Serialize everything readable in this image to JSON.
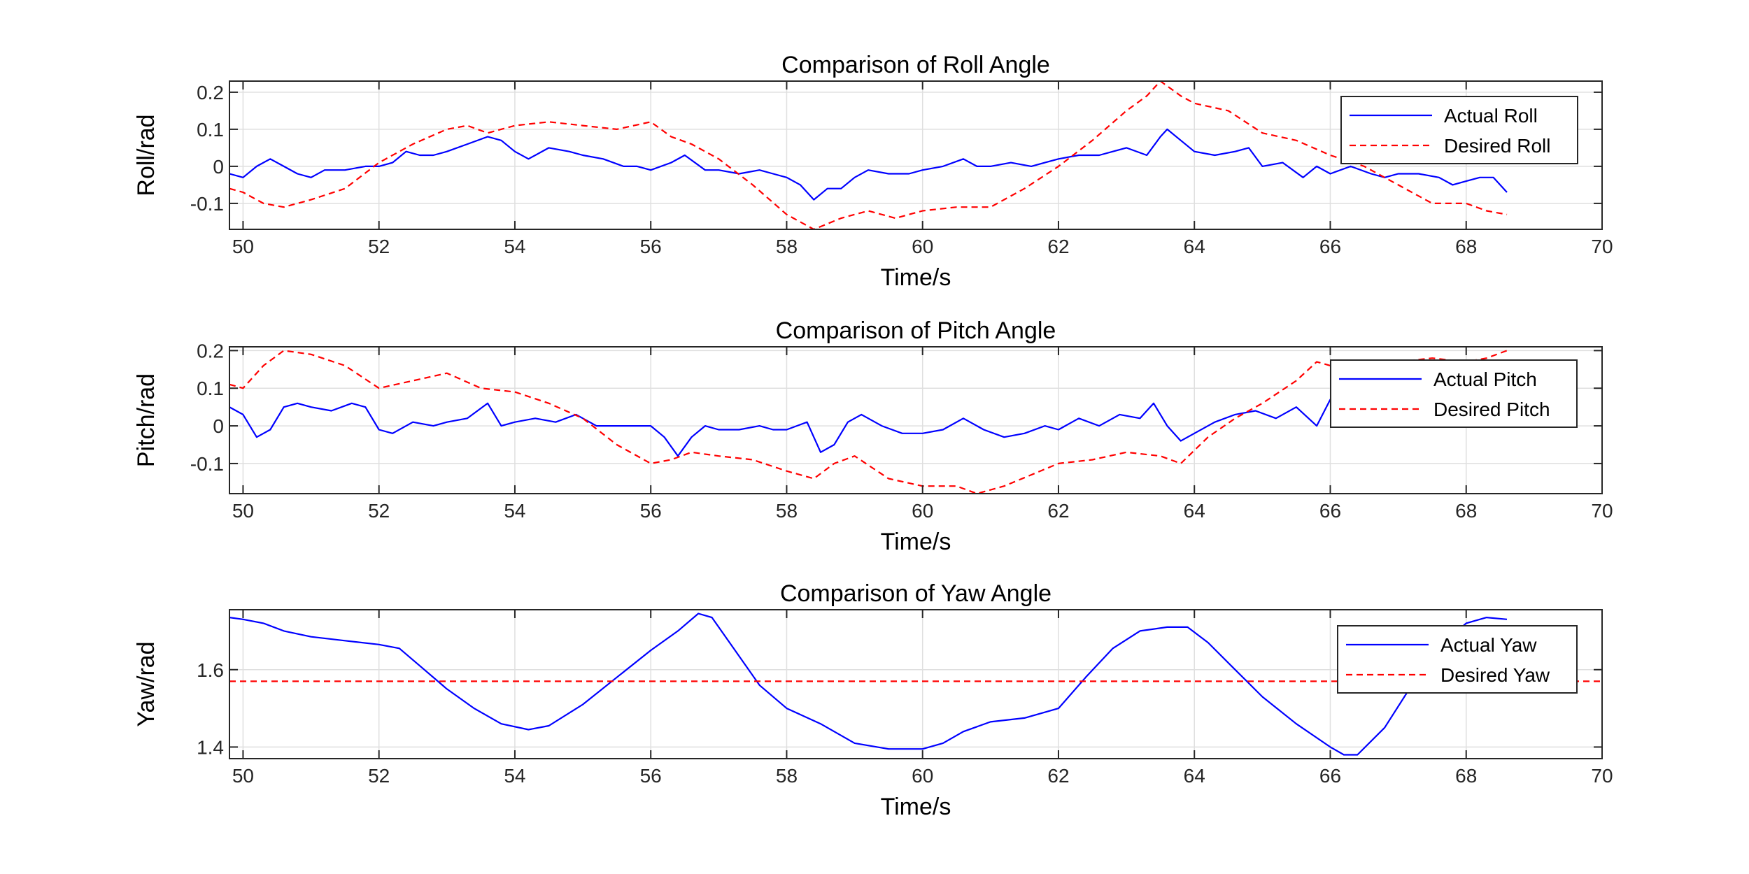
{
  "chart_data": [
    {
      "type": "line",
      "title": "Comparison of Roll Angle",
      "xlabel": "Time/s",
      "ylabel": "Roll/rad",
      "xlim": [
        49.8,
        70
      ],
      "ylim": [
        -0.17,
        0.23
      ],
      "xticks": [
        50,
        52,
        54,
        56,
        58,
        60,
        62,
        64,
        66,
        68,
        70
      ],
      "yticks": [
        -0.1,
        0,
        0.1,
        0.2
      ],
      "ytick_labels": [
        "-0.1",
        "0",
        "0.1",
        "0.2"
      ],
      "grid": true,
      "legend_position": "top-right",
      "series": [
        {
          "name": "Actual Roll",
          "color": "#0000ff",
          "style": "solid",
          "x": [
            49.8,
            50.0,
            50.2,
            50.4,
            50.6,
            50.8,
            51.0,
            51.2,
            51.5,
            51.8,
            52.0,
            52.2,
            52.4,
            52.6,
            52.8,
            53.0,
            53.3,
            53.6,
            53.8,
            54.0,
            54.2,
            54.5,
            54.8,
            55.0,
            55.3,
            55.6,
            55.8,
            56.0,
            56.3,
            56.5,
            56.8,
            57.0,
            57.3,
            57.6,
            57.8,
            58.0,
            58.2,
            58.4,
            58.6,
            58.8,
            59.0,
            59.2,
            59.5,
            59.8,
            60.0,
            60.3,
            60.6,
            60.8,
            61.0,
            61.3,
            61.6,
            61.8,
            62.0,
            62.3,
            62.6,
            62.8,
            63.0,
            63.3,
            63.5,
            63.6,
            63.8,
            64.0,
            64.3,
            64.6,
            64.8,
            65.0,
            65.3,
            65.6,
            65.8,
            66.0,
            66.3,
            66.6,
            66.8,
            67.0,
            67.3,
            67.6,
            67.8,
            68.0,
            68.2,
            68.4,
            68.6
          ],
          "y": [
            -0.02,
            -0.03,
            0.0,
            0.02,
            0.0,
            -0.02,
            -0.03,
            -0.01,
            -0.01,
            0.0,
            0.0,
            0.01,
            0.04,
            0.03,
            0.03,
            0.04,
            0.06,
            0.08,
            0.07,
            0.04,
            0.02,
            0.05,
            0.04,
            0.03,
            0.02,
            0.0,
            0.0,
            -0.01,
            0.01,
            0.03,
            -0.01,
            -0.01,
            -0.02,
            -0.01,
            -0.02,
            -0.03,
            -0.05,
            -0.09,
            -0.06,
            -0.06,
            -0.03,
            -0.01,
            -0.02,
            -0.02,
            -0.01,
            0.0,
            0.02,
            0.0,
            0.0,
            0.01,
            0.0,
            0.01,
            0.02,
            0.03,
            0.03,
            0.04,
            0.05,
            0.03,
            0.08,
            0.1,
            0.07,
            0.04,
            0.03,
            0.04,
            0.05,
            0.0,
            0.01,
            -0.03,
            0.0,
            -0.02,
            0.0,
            -0.02,
            -0.03,
            -0.02,
            -0.02,
            -0.03,
            -0.05,
            -0.04,
            -0.03,
            -0.03,
            -0.07
          ]
        },
        {
          "name": "Desired Roll",
          "color": "#ff0000",
          "style": "dashed",
          "x": [
            49.8,
            50.0,
            50.3,
            50.6,
            51.0,
            51.5,
            52.0,
            52.5,
            53.0,
            53.3,
            53.6,
            54.0,
            54.5,
            55.0,
            55.5,
            56.0,
            56.3,
            56.6,
            57.0,
            57.5,
            58.0,
            58.4,
            58.8,
            59.2,
            59.6,
            60.0,
            60.5,
            61.0,
            61.5,
            62.0,
            62.5,
            63.0,
            63.3,
            63.5,
            63.8,
            64.0,
            64.5,
            65.0,
            65.5,
            66.0,
            66.5,
            67.0,
            67.5,
            68.0,
            68.3,
            68.6
          ],
          "y": [
            -0.06,
            -0.07,
            -0.1,
            -0.11,
            -0.09,
            -0.06,
            0.01,
            0.06,
            0.1,
            0.11,
            0.09,
            0.11,
            0.12,
            0.11,
            0.1,
            0.12,
            0.08,
            0.06,
            0.02,
            -0.05,
            -0.13,
            -0.17,
            -0.14,
            -0.12,
            -0.14,
            -0.12,
            -0.11,
            -0.11,
            -0.06,
            0.0,
            0.07,
            0.15,
            0.19,
            0.23,
            0.19,
            0.17,
            0.15,
            0.09,
            0.07,
            0.03,
            0.0,
            -0.05,
            -0.1,
            -0.1,
            -0.12,
            -0.13
          ]
        }
      ]
    },
    {
      "type": "line",
      "title": "Comparison of Pitch Angle",
      "xlabel": "Time/s",
      "ylabel": "Pitch/rad",
      "xlim": [
        49.8,
        70
      ],
      "ylim": [
        -0.18,
        0.21
      ],
      "xticks": [
        50,
        52,
        54,
        56,
        58,
        60,
        62,
        64,
        66,
        68,
        70
      ],
      "yticks": [
        -0.1,
        0,
        0.1,
        0.2
      ],
      "ytick_labels": [
        "-0.1",
        "0",
        "0.1",
        "0.2"
      ],
      "grid": true,
      "legend_position": "top-right",
      "series": [
        {
          "name": "Actual Pitch",
          "color": "#0000ff",
          "style": "solid",
          "x": [
            49.8,
            50.0,
            50.2,
            50.4,
            50.6,
            50.8,
            51.0,
            51.3,
            51.6,
            51.8,
            52.0,
            52.2,
            52.5,
            52.8,
            53.0,
            53.3,
            53.6,
            53.8,
            54.0,
            54.3,
            54.6,
            54.9,
            55.2,
            55.5,
            55.8,
            56.0,
            56.2,
            56.4,
            56.6,
            56.8,
            57.0,
            57.3,
            57.6,
            57.8,
            58.0,
            58.3,
            58.5,
            58.7,
            58.9,
            59.1,
            59.4,
            59.7,
            60.0,
            60.3,
            60.6,
            60.9,
            61.2,
            61.5,
            61.8,
            62.0,
            62.3,
            62.6,
            62.9,
            63.2,
            63.4,
            63.6,
            63.8,
            64.0,
            64.3,
            64.6,
            64.9,
            65.2,
            65.5,
            65.8,
            66.0,
            66.2
          ],
          "y": [
            0.05,
            0.03,
            -0.03,
            -0.01,
            0.05,
            0.06,
            0.05,
            0.04,
            0.06,
            0.05,
            -0.01,
            -0.02,
            0.01,
            0.0,
            0.01,
            0.02,
            0.06,
            0.0,
            0.01,
            0.02,
            0.01,
            0.03,
            0.0,
            0.0,
            0.0,
            0.0,
            -0.03,
            -0.08,
            -0.03,
            0.0,
            -0.01,
            -0.01,
            0.0,
            -0.01,
            -0.01,
            0.01,
            -0.07,
            -0.05,
            0.01,
            0.03,
            0.0,
            -0.02,
            -0.02,
            -0.01,
            0.02,
            -0.01,
            -0.03,
            -0.02,
            0.0,
            -0.01,
            0.02,
            0.0,
            0.03,
            0.02,
            0.06,
            0.0,
            -0.04,
            -0.02,
            0.01,
            0.03,
            0.04,
            0.02,
            0.05,
            0.0,
            0.07,
            0.06
          ]
        },
        {
          "name": "Desired Pitch",
          "color": "#ff0000",
          "style": "dashed",
          "x": [
            49.8,
            50.0,
            50.3,
            50.6,
            51.0,
            51.5,
            52.0,
            52.5,
            53.0,
            53.5,
            54.0,
            54.5,
            55.0,
            55.5,
            56.0,
            56.3,
            56.6,
            57.0,
            57.5,
            58.0,
            58.4,
            58.7,
            59.0,
            59.5,
            60.0,
            60.5,
            60.8,
            61.2,
            61.6,
            62.0,
            62.5,
            63.0,
            63.5,
            63.8,
            64.2,
            64.6,
            65.0,
            65.5,
            65.8,
            66.0,
            66.3,
            67.0,
            67.5,
            68.0,
            68.3,
            68.6
          ],
          "y": [
            0.11,
            0.1,
            0.16,
            0.2,
            0.19,
            0.16,
            0.1,
            0.12,
            0.14,
            0.1,
            0.09,
            0.06,
            0.02,
            -0.05,
            -0.1,
            -0.09,
            -0.07,
            -0.08,
            -0.09,
            -0.12,
            -0.14,
            -0.1,
            -0.08,
            -0.14,
            -0.16,
            -0.16,
            -0.18,
            -0.16,
            -0.13,
            -0.1,
            -0.09,
            -0.07,
            -0.08,
            -0.1,
            -0.03,
            0.02,
            0.06,
            0.12,
            0.17,
            0.16,
            0.16,
            0.17,
            0.18,
            0.17,
            0.18,
            0.2
          ]
        }
      ]
    },
    {
      "type": "line",
      "title": "Comparison of Yaw Angle",
      "xlabel": "Time/s",
      "ylabel": "Yaw/rad",
      "xlim": [
        49.8,
        70
      ],
      "ylim": [
        1.37,
        1.755
      ],
      "xticks": [
        50,
        52,
        54,
        56,
        58,
        60,
        62,
        64,
        66,
        68,
        70
      ],
      "yticks": [
        1.4,
        1.6
      ],
      "ytick_labels": [
        "1.4",
        "1.6"
      ],
      "grid": true,
      "legend_position": "top-right",
      "series": [
        {
          "name": "Actual Yaw",
          "color": "#0000ff",
          "style": "solid",
          "x": [
            49.8,
            50.0,
            50.3,
            50.6,
            51.0,
            51.5,
            52.0,
            52.3,
            52.6,
            53.0,
            53.4,
            53.8,
            54.2,
            54.5,
            55.0,
            55.5,
            56.0,
            56.4,
            56.7,
            56.9,
            57.2,
            57.6,
            58.0,
            58.5,
            59.0,
            59.5,
            60.0,
            60.3,
            60.6,
            61.0,
            61.5,
            62.0,
            62.4,
            62.8,
            63.2,
            63.6,
            63.9,
            64.2,
            64.6,
            65.0,
            65.5,
            66.0,
            66.2,
            66.4,
            66.8,
            67.2,
            67.6,
            68.0,
            68.3,
            68.6
          ],
          "y": [
            1.735,
            1.73,
            1.72,
            1.7,
            1.685,
            1.675,
            1.665,
            1.655,
            1.61,
            1.55,
            1.5,
            1.46,
            1.445,
            1.455,
            1.51,
            1.58,
            1.65,
            1.7,
            1.745,
            1.735,
            1.66,
            1.56,
            1.5,
            1.46,
            1.41,
            1.395,
            1.395,
            1.41,
            1.44,
            1.465,
            1.475,
            1.5,
            1.58,
            1.655,
            1.7,
            1.71,
            1.71,
            1.67,
            1.6,
            1.53,
            1.46,
            1.4,
            1.38,
            1.38,
            1.45,
            1.56,
            1.66,
            1.72,
            1.735,
            1.73
          ]
        },
        {
          "name": "Desired Yaw",
          "color": "#ff0000",
          "style": "dashed",
          "x": [
            49.8,
            70
          ],
          "y": [
            1.57,
            1.57
          ]
        }
      ]
    }
  ]
}
